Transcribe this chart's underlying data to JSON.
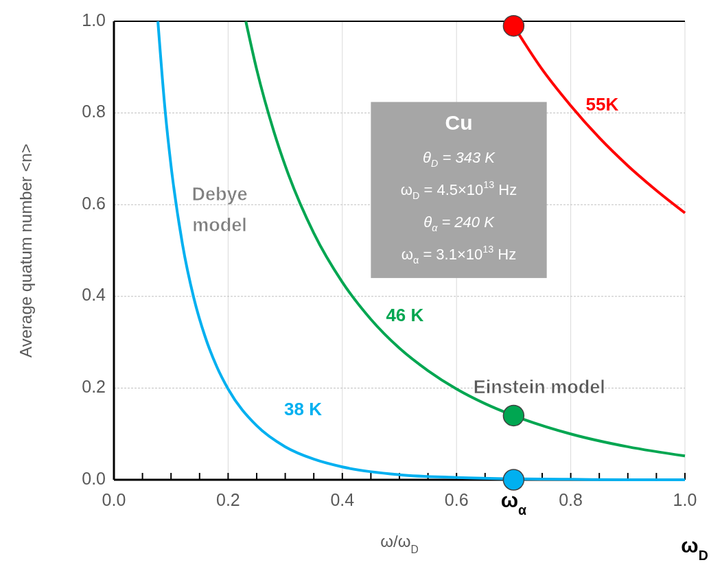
{
  "chart_data": {
    "type": "line",
    "xlabel": "ω/ω$_{D}$",
    "ylabel": "Average quatum number <n>",
    "xlim": [
      0,
      1
    ],
    "ylim": [
      0,
      1
    ],
    "xticks": [
      {
        "value": 0,
        "label": "0.0"
      },
      0.2,
      0.4,
      0.6,
      0.8,
      {
        "value": 1,
        "label": "1.0"
      }
    ],
    "yticks": [
      {
        "value": 0,
        "label": "0.0"
      },
      0.2,
      0.4,
      0.6,
      0.8,
      {
        "value": 1,
        "label": "1.0"
      }
    ],
    "grid": true,
    "line_style": "solid",
    "marker": "none",
    "series": [
      {
        "name": "38 K",
        "color": "#00b0f0",
        "x": [
          0.077,
          0.09,
          0.1,
          0.12,
          0.14,
          0.16,
          0.18,
          0.2,
          0.25,
          0.3,
          0.35,
          0.4,
          0.5,
          0.6,
          0.7,
          0.8,
          0.9,
          1.0
        ],
        "values": [
          1.0,
          0.801,
          0.685,
          0.514,
          0.396,
          0.311,
          0.247,
          0.198,
          0.118,
          0.072,
          0.045,
          0.028,
          0.011,
          0.005,
          0.002,
          0.001,
          0.0,
          0.0
        ]
      },
      {
        "name": "46 K",
        "color": "#00a651",
        "x": [
          0.231,
          0.25,
          0.28,
          0.3,
          0.35,
          0.4,
          0.45,
          0.5,
          0.55,
          0.6,
          0.65,
          0.7,
          0.8,
          0.9,
          1.0
        ],
        "values": [
          1.0,
          0.895,
          0.76,
          0.685,
          0.538,
          0.431,
          0.35,
          0.287,
          0.238,
          0.198,
          0.166,
          0.14,
          0.1,
          0.072,
          0.052
        ]
      },
      {
        "name": "55K",
        "color": "#ff0000",
        "x": [
          0.7,
          0.75,
          0.8,
          0.85,
          0.9,
          0.95,
          1.0
        ],
        "values": [
          0.99,
          0.895,
          0.816,
          0.746,
          0.685,
          0.631,
          0.582
        ]
      },
      {
        "type": "scatter",
        "marker": "circle",
        "x": [
          0.7,
          0.7,
          0.7
        ],
        "values": [
          0.99,
          0.14,
          0.0
        ],
        "colors": [
          "#ff0000",
          "#00a651",
          "#00b0f0"
        ]
      }
    ],
    "annotations": [
      "Debye model",
      "Einstein model",
      "Cu",
      "θ$_{D}$ = 343 K",
      "ω$_{D}$ = 4.5×10$^{13}$ Hz",
      "θ$_{α}$ = 240 K",
      "ω$_{α}$ = 3.1×10$^{13}$ Hz",
      "ω$_{α}$",
      "ω$_{D}$"
    ]
  }
}
